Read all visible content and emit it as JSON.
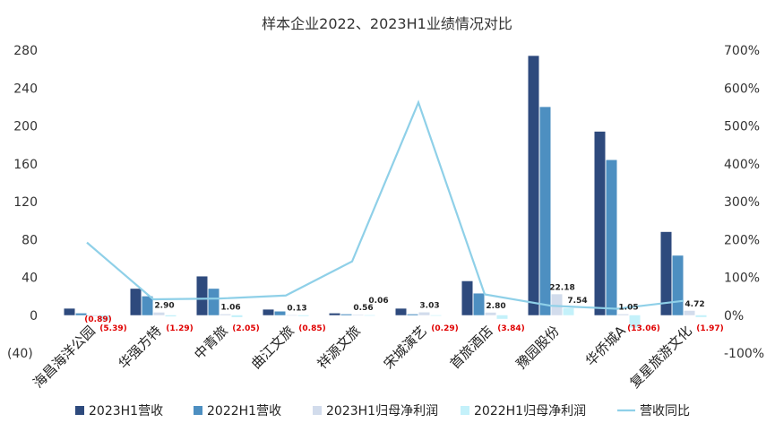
{
  "chart_data": {
    "type": "bar",
    "title": "样本企业2022、2023H1业绩情况对比",
    "categories": [
      "海昌海洋公园",
      "华强方特",
      "中青旅",
      "曲江文旅",
      "祥源文旅",
      "宋城演艺",
      "首旅酒店",
      "豫园股份",
      "华侨城A",
      "复星旅游文化"
    ],
    "y_left": {
      "min": -40,
      "max": 280,
      "ticks": [
        "(40)",
        "0",
        "40",
        "80",
        "120",
        "160",
        "200",
        "240",
        "280"
      ],
      "tick_values": [
        -40,
        0,
        40,
        80,
        120,
        160,
        200,
        240,
        280
      ]
    },
    "y_right": {
      "min": -1.0,
      "max": 7.0,
      "ticks": [
        "-100%",
        "0%",
        "100%",
        "200%",
        "300%",
        "400%",
        "500%",
        "600%",
        "700%"
      ]
    },
    "grid": false,
    "legend_position": "bottom",
    "series": [
      {
        "name": "2023H1营收",
        "type": "bar",
        "axis": "left",
        "color": "#2e4a7d",
        "values": [
          7,
          28,
          41,
          6,
          2,
          7,
          36,
          274,
          194,
          88
        ]
      },
      {
        "name": "2022H1营收",
        "type": "bar",
        "axis": "left",
        "color": "#4d8fc1",
        "values": [
          2,
          20,
          28,
          4,
          1,
          1,
          23,
          220,
          164,
          63
        ]
      },
      {
        "name": "2023H1归母净利润",
        "type": "bar",
        "axis": "left",
        "color": "#d2dcec",
        "values": [
          -0.89,
          2.9,
          1.06,
          0.13,
          0.56,
          3.03,
          2.8,
          22.18,
          1.05,
          4.72
        ],
        "labels": [
          "(0.89)",
          "2.90",
          "1.06",
          "0.13",
          "0.56",
          "3.03",
          "2.80",
          "22.18",
          "1.05",
          "4.72"
        ]
      },
      {
        "name": "2022H1归母净利润",
        "type": "bar",
        "axis": "left",
        "color": "#c4f1fa",
        "values": [
          -5.39,
          -1.29,
          -2.05,
          -0.85,
          0.06,
          -0.29,
          -3.84,
          7.54,
          -13.06,
          -1.97
        ],
        "labels": [
          "(5.39)",
          "(1.29)",
          "(2.05)",
          "(0.85)",
          "0.06",
          "(0.29)",
          "(3.84)",
          "7.54",
          "(13.06)",
          "(1.97)"
        ]
      },
      {
        "name": "营收同比",
        "type": "line",
        "axis": "right",
        "color": "#8fd0e8",
        "values": [
          1.92,
          0.42,
          0.44,
          0.52,
          1.42,
          5.62,
          0.55,
          0.25,
          0.17,
          0.38
        ]
      }
    ]
  }
}
